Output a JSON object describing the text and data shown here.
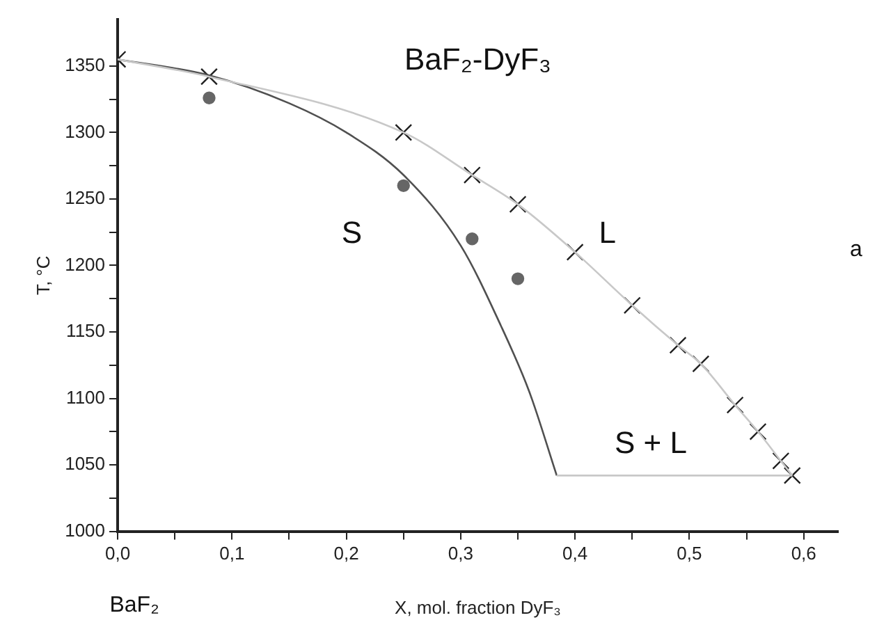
{
  "chart_data": {
    "type": "scatter",
    "title": "BaF₂-DyF₃",
    "xlabel": "X, mol. fraction DyF₃",
    "ylabel": "T, °C",
    "xlim": [
      0,
      0.63
    ],
    "ylim": [
      1000,
      1385
    ],
    "xticks": [
      {
        "value": 0,
        "label": "0,0"
      },
      {
        "value": 0.05,
        "label": null
      },
      {
        "value": 0.1,
        "label": "0,1"
      },
      {
        "value": 0.15,
        "label": null
      },
      {
        "value": 0.2,
        "label": "0,2"
      },
      {
        "value": 0.25,
        "label": null
      },
      {
        "value": 0.3,
        "label": "0,3"
      },
      {
        "value": 0.35,
        "label": null
      },
      {
        "value": 0.4,
        "label": "0,4"
      },
      {
        "value": 0.45,
        "label": null
      },
      {
        "value": 0.5,
        "label": "0,5"
      },
      {
        "value": 0.55,
        "label": null
      },
      {
        "value": 0.6,
        "label": "0,6"
      }
    ],
    "yticks": [
      1000,
      {
        "value": 1025,
        "label": null
      },
      1050,
      {
        "value": 1075,
        "label": null
      },
      1100,
      {
        "value": 1125,
        "label": null
      },
      1150,
      {
        "value": 1175,
        "label": null
      },
      1200,
      {
        "value": 1225,
        "label": null
      },
      1250,
      {
        "value": 1275,
        "label": null
      },
      1300,
      {
        "value": 1325,
        "label": null
      },
      1350
    ],
    "grid": false,
    "legend": false,
    "series": [
      {
        "type": "line",
        "color": "#c8c8c8",
        "marker": "none",
        "x": [
          0,
          0.08,
          0.25,
          0.31,
          0.35,
          0.4,
          0.45,
          0.49,
          0.51,
          0.54,
          0.56,
          0.58,
          0.59
        ],
        "values": [
          1355,
          1342,
          1300,
          1268,
          1246,
          1210,
          1170,
          1140,
          1126,
          1095,
          1075,
          1053,
          1042
        ]
      },
      {
        "type": "line",
        "color": "#c8c8c8",
        "marker": "none",
        "x": [
          0.384,
          0.59
        ],
        "values": [
          1042,
          1042
        ]
      },
      {
        "type": "line",
        "color": "#505050",
        "marker": "none",
        "x": [
          0,
          0.08,
          0.15,
          0.2,
          0.25,
          0.3,
          0.335,
          0.36,
          0.384
        ],
        "values": [
          1355,
          1343,
          1322,
          1300,
          1268,
          1215,
          1155,
          1105,
          1042
        ]
      },
      {
        "type": "scatter",
        "color": "#202020",
        "marker": "cross",
        "x": [
          0,
          0.08,
          0.25,
          0.31,
          0.35,
          0.4,
          0.45,
          0.49,
          0.51,
          0.54,
          0.56,
          0.58,
          0.59
        ],
        "values": [
          1355,
          1342,
          1300,
          1268,
          1246,
          1210,
          1170,
          1140,
          1126,
          1095,
          1075,
          1053,
          1042
        ]
      },
      {
        "type": "scatter",
        "color": "#666666",
        "marker": "circle",
        "x": [
          0.08,
          0.25,
          0.31,
          0.35
        ],
        "values": [
          1326,
          1260,
          1220,
          1190
        ]
      }
    ],
    "annotations": [
      "S",
      "L",
      "S + L",
      "BaF₂",
      "a"
    ]
  }
}
